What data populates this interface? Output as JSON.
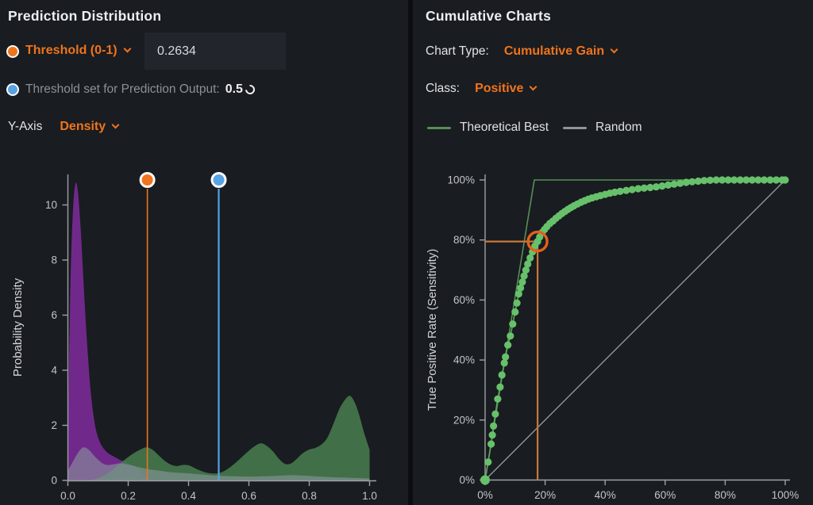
{
  "colors": {
    "accent_orange": "#ef741c",
    "accent_blue": "#57a3e4",
    "panel_background": "#191c20",
    "page_background": "#0b0d10"
  },
  "left_panel": {
    "title": "Prediction Distribution",
    "threshold_control": {
      "label": "Threshold (0-1)",
      "value": "0.2634"
    },
    "prediction_threshold": {
      "label": "Threshold set for Prediction Output:",
      "value": "0.5"
    },
    "y_axis_control": {
      "label": "Y-Axis",
      "value": "Density"
    }
  },
  "right_panel": {
    "title": "Cumulative Charts",
    "chart_type_control": {
      "label": "Chart Type:",
      "value": "Cumulative Gain"
    },
    "class_control": {
      "label": "Class:",
      "value": "Positive"
    },
    "legend": [
      {
        "label": "Theoretical Best",
        "color": "#578f57"
      },
      {
        "label": "Random",
        "color": "#8f969b"
      }
    ]
  },
  "chart_data": [
    {
      "type": "area",
      "title": "Prediction Distribution density plot",
      "xlabel": "",
      "ylabel": "Probability Density",
      "xlim": [
        0,
        1
      ],
      "ylim": [
        0,
        11.2
      ],
      "x_ticks": [
        {
          "v": 0.0,
          "label": "0.0"
        },
        {
          "v": 0.2,
          "label": "0.2"
        },
        {
          "v": 0.4,
          "label": "0.4"
        },
        {
          "v": 0.6,
          "label": "0.6"
        },
        {
          "v": 0.8,
          "label": "0.8"
        },
        {
          "v": 1.0,
          "label": "1.0"
        }
      ],
      "y_ticks": [
        {
          "v": 0,
          "label": "0"
        },
        {
          "v": 2,
          "label": "2"
        },
        {
          "v": 4,
          "label": "4"
        },
        {
          "v": 6,
          "label": "6"
        },
        {
          "v": 8,
          "label": "8"
        },
        {
          "v": 10,
          "label": "10"
        }
      ],
      "series": [
        {
          "name": "density-purple",
          "color": "#7a2b96",
          "opacity": 0.9,
          "points": [
            [
              0,
              1.5
            ],
            [
              0.004,
              4.5
            ],
            [
              0.01,
              7.8
            ],
            [
              0.018,
              10
            ],
            [
              0.026,
              10.8
            ],
            [
              0.034,
              10.4
            ],
            [
              0.042,
              9.2
            ],
            [
              0.05,
              7.6
            ],
            [
              0.058,
              6.0
            ],
            [
              0.066,
              4.6
            ],
            [
              0.075,
              3.3
            ],
            [
              0.085,
              2.35
            ],
            [
              0.095,
              1.75
            ],
            [
              0.11,
              1.3
            ],
            [
              0.13,
              1.02
            ],
            [
              0.15,
              0.88
            ],
            [
              0.17,
              0.76
            ],
            [
              0.19,
              0.66
            ],
            [
              0.21,
              0.56
            ],
            [
              0.23,
              0.42
            ],
            [
              0.25,
              0.22
            ],
            [
              0.265,
              0.09
            ],
            [
              0.275,
              0
            ]
          ]
        },
        {
          "name": "density-green",
          "color": "#4a8152",
          "opacity": 0.82,
          "points": [
            [
              0.08,
              0.02
            ],
            [
              0.1,
              0.08
            ],
            [
              0.12,
              0.18
            ],
            [
              0.14,
              0.32
            ],
            [
              0.16,
              0.5
            ],
            [
              0.18,
              0.68
            ],
            [
              0.2,
              0.85
            ],
            [
              0.22,
              1.0
            ],
            [
              0.24,
              1.12
            ],
            [
              0.26,
              1.2
            ],
            [
              0.28,
              1.12
            ],
            [
              0.3,
              0.92
            ],
            [
              0.32,
              0.72
            ],
            [
              0.34,
              0.58
            ],
            [
              0.36,
              0.52
            ],
            [
              0.38,
              0.56
            ],
            [
              0.4,
              0.55
            ],
            [
              0.42,
              0.45
            ],
            [
              0.44,
              0.35
            ],
            [
              0.46,
              0.28
            ],
            [
              0.48,
              0.25
            ],
            [
              0.5,
              0.26
            ],
            [
              0.52,
              0.35
            ],
            [
              0.54,
              0.5
            ],
            [
              0.56,
              0.68
            ],
            [
              0.58,
              0.88
            ],
            [
              0.6,
              1.08
            ],
            [
              0.62,
              1.25
            ],
            [
              0.64,
              1.35
            ],
            [
              0.66,
              1.25
            ],
            [
              0.68,
              1.05
            ],
            [
              0.7,
              0.78
            ],
            [
              0.72,
              0.6
            ],
            [
              0.74,
              0.62
            ],
            [
              0.76,
              0.8
            ],
            [
              0.78,
              1.0
            ],
            [
              0.8,
              1.12
            ],
            [
              0.82,
              1.18
            ],
            [
              0.84,
              1.3
            ],
            [
              0.86,
              1.55
            ],
            [
              0.88,
              2.05
            ],
            [
              0.9,
              2.6
            ],
            [
              0.92,
              2.95
            ],
            [
              0.935,
              3.07
            ],
            [
              0.95,
              2.85
            ],
            [
              0.965,
              2.4
            ],
            [
              0.98,
              1.8
            ],
            [
              1,
              1.12
            ]
          ]
        },
        {
          "name": "density-gray",
          "color": "#8b979e",
          "opacity": 0.6,
          "points": [
            [
              0,
              0.35
            ],
            [
              0.02,
              0.75
            ],
            [
              0.04,
              1.1
            ],
            [
              0.055,
              1.2
            ],
            [
              0.07,
              1.1
            ],
            [
              0.085,
              0.92
            ],
            [
              0.1,
              0.75
            ],
            [
              0.115,
              0.62
            ],
            [
              0.13,
              0.56
            ],
            [
              0.15,
              0.58
            ],
            [
              0.17,
              0.62
            ],
            [
              0.19,
              0.6
            ],
            [
              0.21,
              0.55
            ],
            [
              0.24,
              0.47
            ],
            [
              0.27,
              0.4
            ],
            [
              0.3,
              0.36
            ],
            [
              0.34,
              0.3
            ],
            [
              0.38,
              0.27
            ],
            [
              0.42,
              0.24
            ],
            [
              0.46,
              0.2
            ],
            [
              0.5,
              0.17
            ],
            [
              0.55,
              0.15
            ],
            [
              0.6,
              0.14
            ],
            [
              0.65,
              0.15
            ],
            [
              0.7,
              0.17
            ],
            [
              0.75,
              0.19
            ],
            [
              0.8,
              0.16
            ],
            [
              0.85,
              0.13
            ],
            [
              0.9,
              0.11
            ],
            [
              0.95,
              0.09
            ],
            [
              1,
              0.07
            ]
          ]
        }
      ],
      "thresholds": [
        {
          "name": "manual-threshold",
          "x": 0.2634,
          "color": "#ef741c",
          "width": 1.6
        },
        {
          "name": "prediction-output-threshold",
          "x": 0.5,
          "color": "#57a3e4",
          "width": 2.2
        }
      ]
    },
    {
      "type": "scatter",
      "title": "Cumulative Gain curve",
      "xlabel": "",
      "ylabel": "True Positive Rate (Sensitivity)",
      "xlim": [
        0,
        100
      ],
      "ylim": [
        0,
        100
      ],
      "x_ticks": [
        {
          "v": 0,
          "label": "0%"
        },
        {
          "v": 20,
          "label": "20%"
        },
        {
          "v": 40,
          "label": "40%"
        },
        {
          "v": 60,
          "label": "60%"
        },
        {
          "v": 80,
          "label": "80%"
        },
        {
          "v": 100,
          "label": "100%"
        }
      ],
      "y_ticks": [
        {
          "v": 0,
          "label": "0%"
        },
        {
          "v": 20,
          "label": "20%"
        },
        {
          "v": 40,
          "label": "40%"
        },
        {
          "v": 60,
          "label": "60%"
        },
        {
          "v": 80,
          "label": "80%"
        },
        {
          "v": 100,
          "label": "100%"
        }
      ],
      "series": [
        {
          "name": "random",
          "kind": "line",
          "color": "#8f969b",
          "points": [
            [
              0,
              0
            ],
            [
              100,
              100
            ]
          ]
        },
        {
          "name": "theoretical_best",
          "kind": "line",
          "color": "#578f57",
          "points": [
            [
              0,
              0
            ],
            [
              16.4,
              100
            ],
            [
              100,
              100
            ]
          ]
        },
        {
          "name": "model",
          "kind": "scatter-line",
          "color": "#67c16b",
          "line_color": "#58a85c",
          "points": [
            [
              0,
              0
            ],
            [
              1,
              6
            ],
            [
              2,
              12
            ],
            [
              2.4,
              15
            ],
            [
              2.8,
              18
            ],
            [
              3.4,
              22
            ],
            [
              4.2,
              27
            ],
            [
              5,
              31
            ],
            [
              5.6,
              35
            ],
            [
              6.4,
              39
            ],
            [
              6.8,
              41
            ],
            [
              7.6,
              45
            ],
            [
              8.4,
              48
            ],
            [
              9.2,
              52
            ],
            [
              10,
              56
            ],
            [
              10.6,
              59
            ],
            [
              11.2,
              62
            ],
            [
              11.8,
              64
            ],
            [
              12.4,
              66
            ],
            [
              13,
              68
            ],
            [
              13.6,
              70
            ],
            [
              14.2,
              72
            ],
            [
              15,
              74
            ],
            [
              15.8,
              76
            ],
            [
              16.6,
              78
            ],
            [
              17.5,
              79.5
            ],
            [
              18.2,
              81
            ],
            [
              19,
              82.5
            ],
            [
              19.8,
              83.5
            ],
            [
              20.6,
              84.5
            ],
            [
              21.6,
              85.5
            ],
            [
              22.6,
              86.3
            ],
            [
              23.6,
              87.2
            ],
            [
              24.6,
              88
            ],
            [
              25.6,
              88.8
            ],
            [
              26.6,
              89.5
            ],
            [
              27.6,
              90.2
            ],
            [
              28.6,
              90.8
            ],
            [
              29.6,
              91.4
            ],
            [
              30.8,
              92
            ],
            [
              32,
              92.6
            ],
            [
              33.2,
              93.1
            ],
            [
              34.4,
              93.6
            ],
            [
              35.6,
              94
            ],
            [
              37,
              94.4
            ],
            [
              38.4,
              94.8
            ],
            [
              40,
              95.2
            ],
            [
              41.6,
              95.6
            ],
            [
              43.2,
              95.9
            ],
            [
              45,
              96.2
            ],
            [
              47,
              96.5
            ],
            [
              49,
              96.8
            ],
            [
              51,
              97.1
            ],
            [
              53,
              97.3
            ],
            [
              55,
              97.5
            ],
            [
              57,
              97.7
            ],
            [
              59,
              98
            ],
            [
              61,
              98.3
            ],
            [
              63,
              98.6
            ],
            [
              65,
              98.9
            ],
            [
              67,
              99.2
            ],
            [
              69,
              99.4
            ],
            [
              71,
              99.6
            ],
            [
              73,
              99.8
            ],
            [
              75,
              99.9
            ],
            [
              77,
              100
            ],
            [
              79,
              100
            ],
            [
              81,
              100
            ],
            [
              83,
              100
            ],
            [
              85,
              100
            ],
            [
              87,
              100
            ],
            [
              89,
              100
            ],
            [
              91,
              100
            ],
            [
              93,
              100
            ],
            [
              95,
              100
            ],
            [
              97,
              100
            ],
            [
              99,
              100
            ],
            [
              100,
              100
            ]
          ]
        }
      ],
      "highlight": {
        "x": 17.5,
        "y": 79.5,
        "color": "#e2611b",
        "crosshair_color": "#c9783a"
      }
    }
  ]
}
